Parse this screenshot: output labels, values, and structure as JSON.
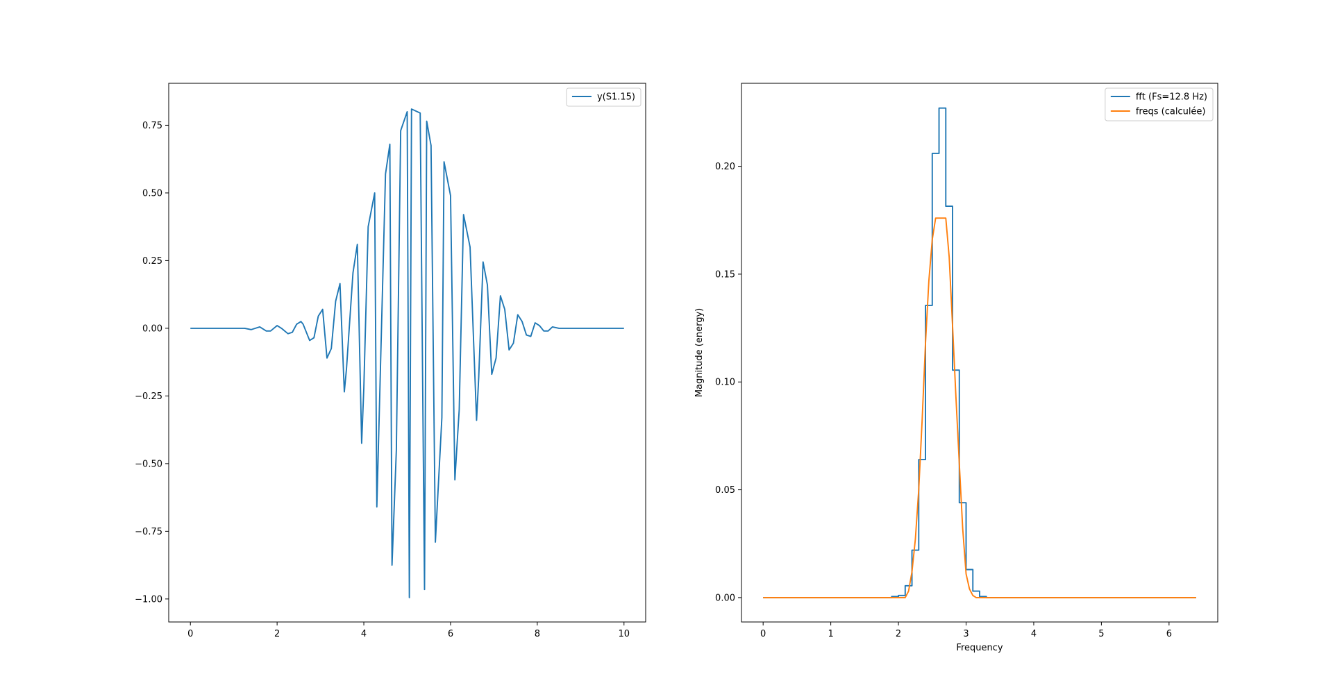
{
  "chart_data": [
    {
      "type": "line",
      "xlabel": "",
      "ylabel": "",
      "xlim": [
        -0.5,
        10.5
      ],
      "ylim": [
        -1.085,
        0.905
      ],
      "xticks": [
        0,
        2,
        4,
        6,
        8,
        10
      ],
      "xtick_labels": [
        "0",
        "2",
        "4",
        "6",
        "8",
        "10"
      ],
      "yticks": [
        0.75,
        0.5,
        0.25,
        0.0,
        -0.25,
        -0.5,
        -0.75,
        -1.0
      ],
      "ytick_labels": [
        "0.75",
        "0.50",
        "0.25",
        "0.00",
        "−0.25",
        "−0.50",
        "−0.75",
        "−1.00"
      ],
      "legend": "top-right",
      "series": [
        {
          "name": "y(S1.15)",
          "color": "#1f77b4",
          "draw": "line",
          "x": [
            0,
            1.25,
            1.4,
            1.5,
            1.6,
            1.75,
            1.85,
            2.0,
            2.1,
            2.25,
            2.35,
            2.45,
            2.55,
            2.6,
            2.75,
            2.85,
            2.95,
            3.05,
            3.15,
            3.25,
            3.35,
            3.45,
            3.55,
            3.6,
            3.75,
            3.85,
            3.95,
            4.0,
            4.1,
            4.25,
            4.3,
            4.5,
            4.6,
            4.65,
            4.75,
            4.85,
            5.0,
            5.05,
            5.1,
            5.3,
            5.4,
            5.45,
            5.55,
            5.65,
            5.8,
            5.85,
            6.0,
            6.1,
            6.2,
            6.3,
            6.45,
            6.6,
            6.65,
            6.75,
            6.85,
            6.95,
            7.05,
            7.15,
            7.25,
            7.35,
            7.45,
            7.55,
            7.65,
            7.75,
            7.85,
            7.95,
            8.05,
            8.15,
            8.25,
            8.35,
            8.5,
            8.65,
            8.8,
            9.0,
            9.2,
            9.4,
            10.0
          ],
          "y": [
            0,
            0,
            -0.005,
            0,
            0.005,
            -0.01,
            -0.01,
            0.01,
            0,
            -0.02,
            -0.015,
            0.015,
            0.025,
            0.015,
            -0.045,
            -0.035,
            0.045,
            0.07,
            -0.11,
            -0.075,
            0.1,
            0.165,
            -0.235,
            -0.15,
            0.205,
            0.31,
            -0.425,
            -0.22,
            0.375,
            0.5,
            -0.66,
            0.57,
            0.68,
            -0.875,
            -0.45,
            0.73,
            0.8,
            -0.995,
            0.81,
            0.795,
            -0.965,
            0.765,
            0.675,
            -0.79,
            -0.33,
            0.615,
            0.49,
            -0.56,
            -0.3,
            0.42,
            0.3,
            -0.34,
            -0.18,
            0.245,
            0.16,
            -0.17,
            -0.11,
            0.12,
            0.07,
            -0.08,
            -0.055,
            0.05,
            0.025,
            -0.025,
            -0.03,
            0.02,
            0.01,
            -0.01,
            -0.01,
            0.005,
            0,
            0,
            0,
            0,
            0,
            0,
            0
          ]
        }
      ]
    },
    {
      "type": "line",
      "xlabel": "Frequency",
      "ylabel": "Magnitude (energy)",
      "xlim": [
        -0.32,
        6.72
      ],
      "ylim": [
        -0.0113,
        0.2385
      ],
      "xticks": [
        0,
        1,
        2,
        3,
        4,
        5,
        6
      ],
      "xtick_labels": [
        "0",
        "1",
        "2",
        "3",
        "4",
        "5",
        "6"
      ],
      "yticks": [
        0.0,
        0.05,
        0.1,
        0.15,
        0.2
      ],
      "ytick_labels": [
        "0.00",
        "0.05",
        "0.10",
        "0.15",
        "0.20"
      ],
      "legend": "top-right",
      "series": [
        {
          "name": "fft (Fs=12.8 Hz)",
          "color": "#1f77b4",
          "draw": "step",
          "x": [
            0,
            1.8,
            1.9,
            2.0,
            2.1,
            2.2,
            2.3,
            2.4,
            2.5,
            2.6,
            2.7,
            2.8,
            2.9,
            3.0,
            3.1,
            3.2,
            3.3,
            6.4
          ],
          "y": [
            0,
            0,
            0.0005,
            0.001,
            0.0055,
            0.022,
            0.064,
            0.1355,
            0.206,
            0.227,
            0.1815,
            0.1055,
            0.044,
            0.013,
            0.003,
            0.0005,
            0,
            0
          ]
        },
        {
          "name": "freqs (calculée)",
          "color": "#ff7f0e",
          "draw": "line",
          "x": [
            0,
            2.0,
            2.1,
            2.15,
            2.2,
            2.25,
            2.3,
            2.35,
            2.4,
            2.45,
            2.5,
            2.55,
            2.6,
            2.65,
            2.7,
            2.75,
            2.8,
            2.85,
            2.9,
            2.95,
            3.0,
            3.05,
            3.1,
            3.15,
            3.2,
            6.4
          ],
          "y": [
            0,
            0,
            0,
            0.003,
            0.012,
            0.027,
            0.05,
            0.082,
            0.118,
            0.147,
            0.166,
            0.176,
            0.176,
            0.176,
            0.176,
            0.158,
            0.126,
            0.093,
            0.062,
            0.032,
            0.011,
            0.004,
            0.001,
            0,
            0,
            0
          ]
        }
      ]
    }
  ]
}
